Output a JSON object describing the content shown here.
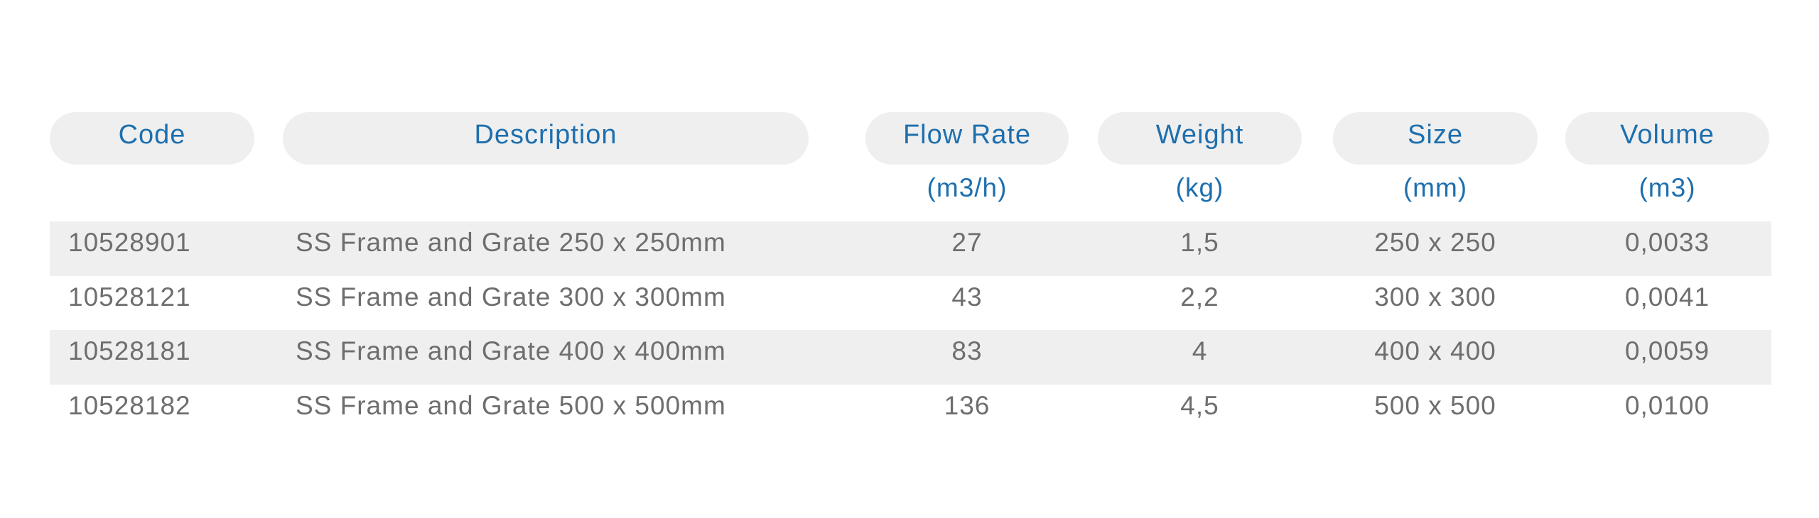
{
  "table": {
    "headers": [
      {
        "label": "Code",
        "unit": ""
      },
      {
        "label": "Description",
        "unit": ""
      },
      {
        "label": "Flow Rate",
        "unit": "(m3/h)"
      },
      {
        "label": "Weight",
        "unit": "(kg)"
      },
      {
        "label": "Size",
        "unit": "(mm)"
      },
      {
        "label": "Volume",
        "unit": "(m3)"
      }
    ],
    "rows": [
      {
        "code": "10528901",
        "description": "SS Frame and Grate 250 x 250mm",
        "flow_rate": "27",
        "weight": "1,5",
        "size": "250 x 250",
        "volume": "0,0033"
      },
      {
        "code": "10528121",
        "description": "SS Frame and Grate 300 x 300mm",
        "flow_rate": "43",
        "weight": "2,2",
        "size": "300 x 300",
        "volume": "0,0041"
      },
      {
        "code": "10528181",
        "description": "SS Frame and Grate 400 x 400mm",
        "flow_rate": "83",
        "weight": "4",
        "size": "400 x 400",
        "volume": "0,0059"
      },
      {
        "code": "10528182",
        "description": "SS Frame and Grate 500 x 500mm",
        "flow_rate": "136",
        "weight": "4,5",
        "size": "500 x 500",
        "volume": "0,0100"
      }
    ]
  },
  "colors": {
    "header_text": "#1e6fae",
    "header_bg": "#efefef",
    "body_text": "#6e6e6e",
    "stripe": "#efefef"
  }
}
